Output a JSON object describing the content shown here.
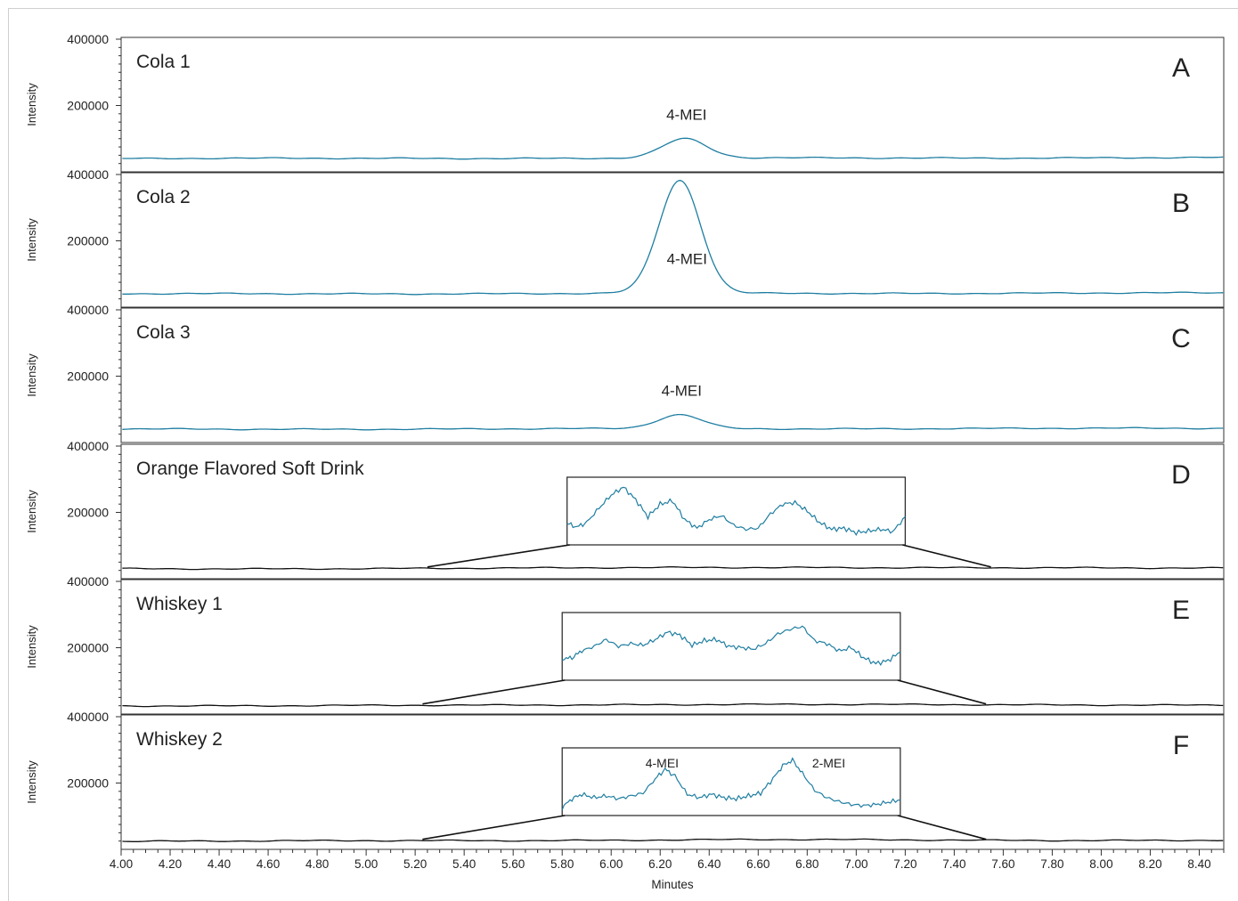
{
  "chart_data": {
    "type": "line",
    "xlabel": "Minutes",
    "ylabel": "Intensity",
    "xlim": [
      4.0,
      8.5
    ],
    "ylim": [
      0,
      400000
    ],
    "x_ticks": [
      "4.00",
      "4.20",
      "4.40",
      "4.60",
      "4.80",
      "5.00",
      "5.20",
      "5.40",
      "5.60",
      "5.80",
      "6.00",
      "6.20",
      "6.40",
      "6.60",
      "6.80",
      "7.00",
      "7.20",
      "7.40",
      "7.60",
      "7.80",
      "8.00",
      "8.20",
      "8.40"
    ],
    "y_ticks": [
      "400000",
      "200000"
    ],
    "line_color": "#1f7ea1",
    "inset_color": "#1f7ea1",
    "panels": [
      {
        "label": "Cola 1",
        "letter": "A",
        "baseline": 40000,
        "peaks": [
          {
            "x": 6.3,
            "height": 58000,
            "width": 0.09
          }
        ],
        "peak_label": "4-MEI",
        "inset": null
      },
      {
        "label": "Cola 2",
        "letter": "B",
        "baseline": 40000,
        "peaks": [
          {
            "x": 6.28,
            "height": 340000,
            "width": 0.085
          }
        ],
        "peak_label": "4-MEI",
        "inset": null
      },
      {
        "label": "Cola 3",
        "letter": "C",
        "baseline": 40000,
        "peaks": [
          {
            "x": 6.28,
            "height": 42000,
            "width": 0.09
          }
        ],
        "peak_label": "4-MEI",
        "inset": null
      },
      {
        "label": "Orange Flavored Soft Drink",
        "letter": "D",
        "baseline": 30000,
        "peaks": [],
        "peak_label": "",
        "inset": {
          "x": [
            5.82,
            5.86,
            5.9,
            5.95,
            6.0,
            6.05,
            6.1,
            6.15,
            6.2,
            6.25,
            6.3,
            6.35,
            6.4,
            6.45,
            6.5,
            6.55,
            6.6,
            6.65,
            6.7,
            6.75,
            6.8,
            6.85,
            6.9,
            6.95,
            7.0,
            7.05,
            7.1,
            7.15,
            7.2
          ],
          "y": [
            0.28,
            0.22,
            0.3,
            0.55,
            0.78,
            0.92,
            0.7,
            0.4,
            0.62,
            0.68,
            0.35,
            0.2,
            0.35,
            0.42,
            0.25,
            0.18,
            0.2,
            0.45,
            0.62,
            0.65,
            0.5,
            0.3,
            0.18,
            0.2,
            0.12,
            0.15,
            0.18,
            0.14,
            0.4
          ],
          "labels": []
        }
      },
      {
        "label": "Whiskey 1",
        "letter": "E",
        "baseline": 25000,
        "peaks": [],
        "peak_label": "",
        "inset": {
          "x": [
            5.8,
            5.84,
            5.88,
            5.93,
            5.98,
            6.03,
            6.08,
            6.13,
            6.18,
            6.23,
            6.28,
            6.33,
            6.38,
            6.43,
            6.48,
            6.53,
            6.58,
            6.63,
            6.68,
            6.73,
            6.78,
            6.83,
            6.88,
            6.93,
            6.98,
            7.03,
            7.08,
            7.13,
            7.18
          ],
          "y": [
            0.28,
            0.3,
            0.42,
            0.5,
            0.62,
            0.5,
            0.55,
            0.52,
            0.62,
            0.75,
            0.7,
            0.52,
            0.6,
            0.62,
            0.5,
            0.48,
            0.45,
            0.55,
            0.72,
            0.8,
            0.85,
            0.6,
            0.55,
            0.42,
            0.48,
            0.3,
            0.2,
            0.25,
            0.4
          ],
          "labels": []
        }
      },
      {
        "label": "Whiskey 2",
        "letter": "F",
        "baseline": 25000,
        "peaks": [],
        "peak_label": "",
        "inset": {
          "x": [
            5.8,
            5.84,
            5.88,
            5.93,
            5.98,
            6.03,
            6.08,
            6.13,
            6.18,
            6.22,
            6.26,
            6.31,
            6.36,
            6.41,
            6.46,
            6.51,
            6.56,
            6.61,
            6.66,
            6.7,
            6.74,
            6.78,
            6.83,
            6.88,
            6.93,
            6.98,
            7.03,
            7.08,
            7.13,
            7.18
          ],
          "y": [
            0.05,
            0.2,
            0.28,
            0.22,
            0.25,
            0.2,
            0.25,
            0.3,
            0.55,
            0.72,
            0.6,
            0.28,
            0.22,
            0.28,
            0.22,
            0.2,
            0.25,
            0.3,
            0.55,
            0.78,
            0.88,
            0.65,
            0.35,
            0.22,
            0.15,
            0.1,
            0.08,
            0.1,
            0.14,
            0.18
          ],
          "labels": [
            {
              "text": "4-MEI",
              "x": 6.14
            },
            {
              "text": "2-MEI",
              "x": 6.82
            }
          ]
        }
      }
    ]
  }
}
